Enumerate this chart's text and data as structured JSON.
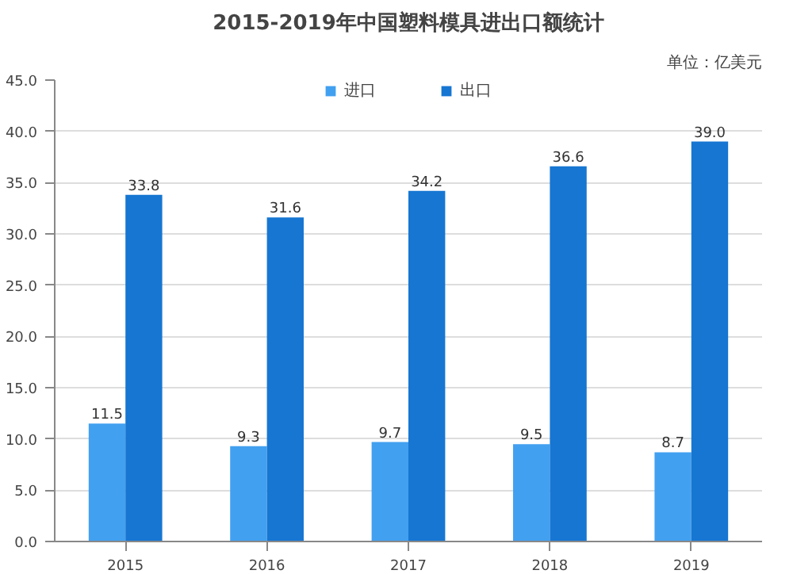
{
  "chart_data": {
    "type": "bar",
    "title": "2015-2019年中国塑料模具进出口额统计",
    "categories": [
      "2015",
      "2016",
      "2017",
      "2018",
      "2019"
    ],
    "series": [
      {
        "name": "进口",
        "color": "#42a0f0",
        "values": [
          11.5,
          9.3,
          9.7,
          9.5,
          8.7
        ],
        "value_labels": [
          "11.5",
          "9.3",
          "9.7",
          "9.5",
          "8.7"
        ]
      },
      {
        "name": "出口",
        "color": "#1676d2",
        "values": [
          33.8,
          31.6,
          34.2,
          36.6,
          39.0
        ],
        "value_labels": [
          "33.8",
          "31.6",
          "34.2",
          "36.6",
          "39.0"
        ]
      }
    ],
    "ylim": [
      0,
      45
    ],
    "yticks": [
      {
        "value": 0,
        "label": "0.0"
      },
      {
        "value": 5,
        "label": "5.0"
      },
      {
        "value": 10,
        "label": "10.0"
      },
      {
        "value": 15,
        "label": "15.0"
      },
      {
        "value": 20,
        "label": "20.0"
      },
      {
        "value": 25,
        "label": "25.0"
      },
      {
        "value": 30,
        "label": "30.0"
      },
      {
        "value": 35,
        "label": "35.0"
      },
      {
        "value": 40,
        "label": "40.0"
      },
      {
        "value": 45,
        "label": "45.0"
      }
    ],
    "annotations": [
      "单位：亿美元"
    ],
    "grid": "y",
    "legend": "top"
  }
}
